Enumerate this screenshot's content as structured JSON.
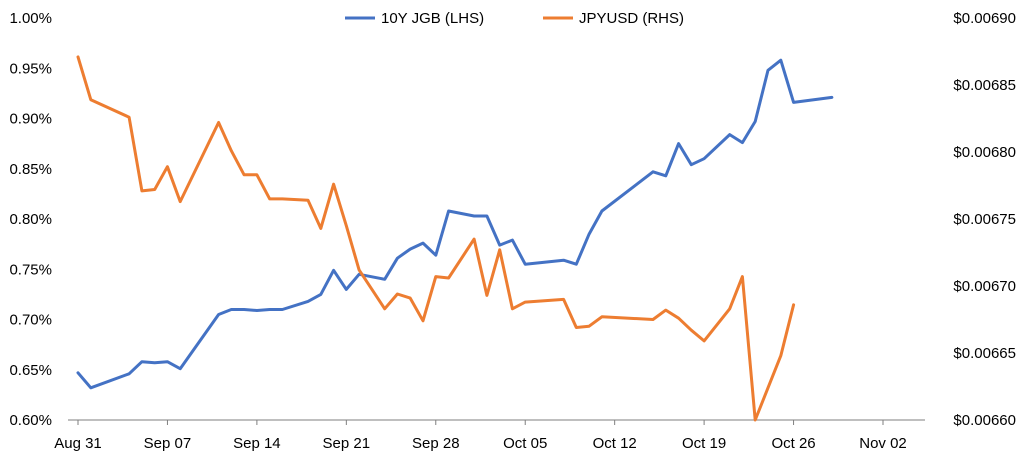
{
  "chart_data": {
    "type": "line",
    "x": [
      "2024-08-31",
      "2024-09-01",
      "2024-09-04",
      "2024-09-05",
      "2024-09-06",
      "2024-09-07",
      "2024-09-08",
      "2024-09-11",
      "2024-09-12",
      "2024-09-13",
      "2024-09-14",
      "2024-09-15",
      "2024-09-16",
      "2024-09-18",
      "2024-09-19",
      "2024-09-20",
      "2024-09-21",
      "2024-09-22",
      "2024-09-24",
      "2024-09-25",
      "2024-09-26",
      "2024-09-27",
      "2024-09-28",
      "2024-09-29",
      "2024-10-01",
      "2024-10-02",
      "2024-10-03",
      "2024-10-04",
      "2024-10-05",
      "2024-10-08",
      "2024-10-09",
      "2024-10-10",
      "2024-10-11",
      "2024-10-15",
      "2024-10-16",
      "2024-10-17",
      "2024-10-18",
      "2024-10-19",
      "2024-10-21",
      "2024-10-22",
      "2024-10-23",
      "2024-10-24",
      "2024-10-25",
      "2024-10-26",
      "2024-10-29",
      "2024-10-30",
      "2024-10-31",
      "2024-11-01",
      "2024-11-02"
    ],
    "series": [
      {
        "name": "10Y JGB (LHS)",
        "axis": "left",
        "color": "#4472C4",
        "values": [
          0.647,
          0.632,
          0.646,
          0.658,
          0.657,
          0.658,
          0.651,
          0.705,
          0.71,
          0.71,
          0.709,
          0.71,
          0.71,
          0.718,
          0.725,
          0.749,
          0.73,
          0.745,
          0.74,
          0.761,
          0.77,
          0.776,
          0.764,
          0.808,
          0.803,
          0.803,
          0.774,
          0.779,
          0.755,
          0.759,
          0.755,
          0.785,
          0.808,
          0.847,
          0.843,
          0.875,
          0.854,
          0.86,
          0.884,
          0.876,
          0.897,
          0.948,
          0.958,
          0.916,
          0.921,
          null,
          null,
          null,
          null
        ]
      },
      {
        "name": "JPYUSD (RHS)",
        "axis": "right",
        "color": "#ED7D31",
        "values": [
          0.006871,
          0.006839,
          0.006826,
          0.006771,
          0.006772,
          0.006789,
          0.006763,
          0.006822,
          0.006801,
          0.006783,
          0.006783,
          0.006765,
          0.006765,
          0.006764,
          0.006743,
          0.006776,
          0.006745,
          0.006712,
          0.006683,
          0.006694,
          0.006691,
          0.006674,
          0.006707,
          0.006706,
          0.006735,
          0.006693,
          0.006727,
          0.006683,
          0.006688,
          0.00669,
          0.006669,
          0.00667,
          0.006677,
          0.006675,
          0.006682,
          0.006676,
          0.006667,
          0.006659,
          0.006683,
          0.006707,
          0.0066,
          0.006624,
          0.006648,
          0.006686,
          null,
          null,
          null,
          null,
          null
        ]
      }
    ],
    "x_labels": [
      "Aug 31",
      "Sep 07",
      "Sep 14",
      "Sep 21",
      "Sep 28",
      "Oct 05",
      "Oct 12",
      "Oct 19",
      "Oct 26",
      "Nov 02"
    ],
    "left_axis": {
      "min": 0.6,
      "max": 1.0,
      "step": 0.05,
      "tick_labels": [
        "0.60%",
        "0.65%",
        "0.70%",
        "0.75%",
        "0.80%",
        "0.85%",
        "0.90%",
        "0.95%",
        "1.00%"
      ]
    },
    "right_axis": {
      "min": 0.0066,
      "max": 0.0069,
      "step": 5e-05,
      "tick_labels": [
        "$0.00660",
        "$0.00665",
        "$0.00670",
        "$0.00675",
        "$0.00680",
        "$0.00685",
        "$0.00690"
      ]
    },
    "legend_position": "top-center",
    "grid": false
  }
}
